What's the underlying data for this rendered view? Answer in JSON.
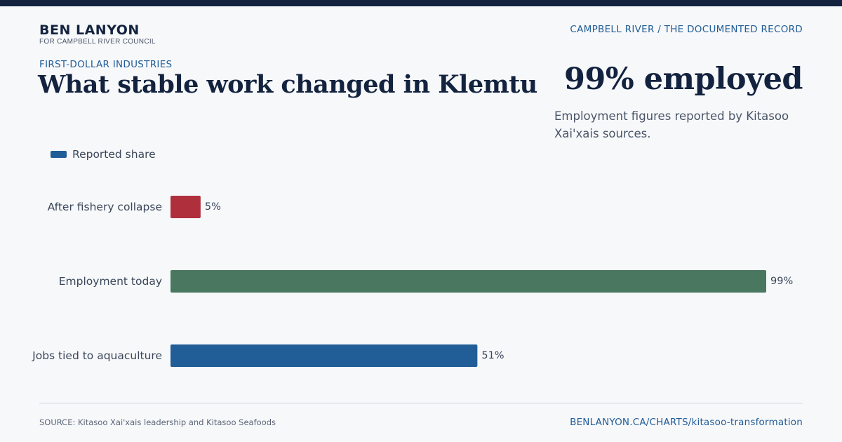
{
  "brand": {
    "name": "BEN LANYON",
    "subtitle": "FOR CAMPBELL RIVER COUNCIL"
  },
  "site_label": "CAMPBELL RIVER / THE DOCUMENTED RECORD",
  "kicker": "FIRST-DOLLAR INDUSTRIES",
  "headline": "What stable work changed in Klemtu",
  "stat": {
    "value": "99% employed",
    "note": "Employment figures reported by Kitasoo Xai'xais sources."
  },
  "legend": {
    "label": "Reported share",
    "color": "#215d97"
  },
  "chart_data": {
    "type": "bar",
    "orientation": "horizontal",
    "categories": [
      "After fishery collapse",
      "Employment today",
      "Jobs tied to aquaculture"
    ],
    "values": [
      5,
      99,
      51
    ],
    "value_labels": [
      "5%",
      "99%",
      "51%"
    ],
    "colors": [
      "#b02f3c",
      "#49775f",
      "#215d97"
    ],
    "series": [
      {
        "name": "Reported share",
        "values": [
          5,
          99,
          51
        ]
      }
    ],
    "xlim": [
      0,
      99
    ],
    "unit": "%",
    "grid": false,
    "legend_position": "top-left"
  },
  "footer": {
    "source": "SOURCE: Kitasoo Xai'xais leadership and Kitasoo Seafoods",
    "url": "BENLANYON.CA/CHARTS/kitasoo-transformation"
  }
}
